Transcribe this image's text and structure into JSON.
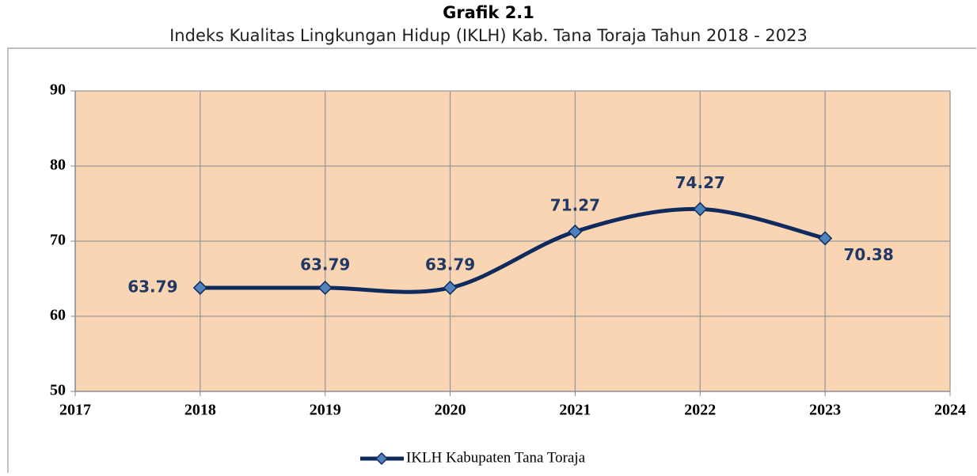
{
  "chart_data": {
    "type": "line",
    "title": "Grafik 2.1",
    "subtitle": "Indeks Kualitas Lingkungan Hidup (IKLH) Kab. Tana Toraja Tahun 2018 - 2023",
    "x": [
      2018,
      2019,
      2020,
      2021,
      2022,
      2023
    ],
    "series": [
      {
        "name": "IKLH Kabupaten Tana Toraja",
        "color": "#0f2a5c",
        "marker_color": "#4f81bd",
        "values": [
          63.79,
          63.79,
          63.79,
          71.27,
          74.27,
          70.38
        ]
      }
    ],
    "xlim": [
      2017,
      2024
    ],
    "xticks": [
      2017,
      2018,
      2019,
      2020,
      2021,
      2022,
      2023,
      2024
    ],
    "ylim": [
      50,
      90
    ],
    "yticks": [
      50,
      60,
      70,
      80,
      90
    ],
    "grid": true,
    "smooth": true,
    "legend": "bottom",
    "plot_background": "#fad5b4"
  }
}
